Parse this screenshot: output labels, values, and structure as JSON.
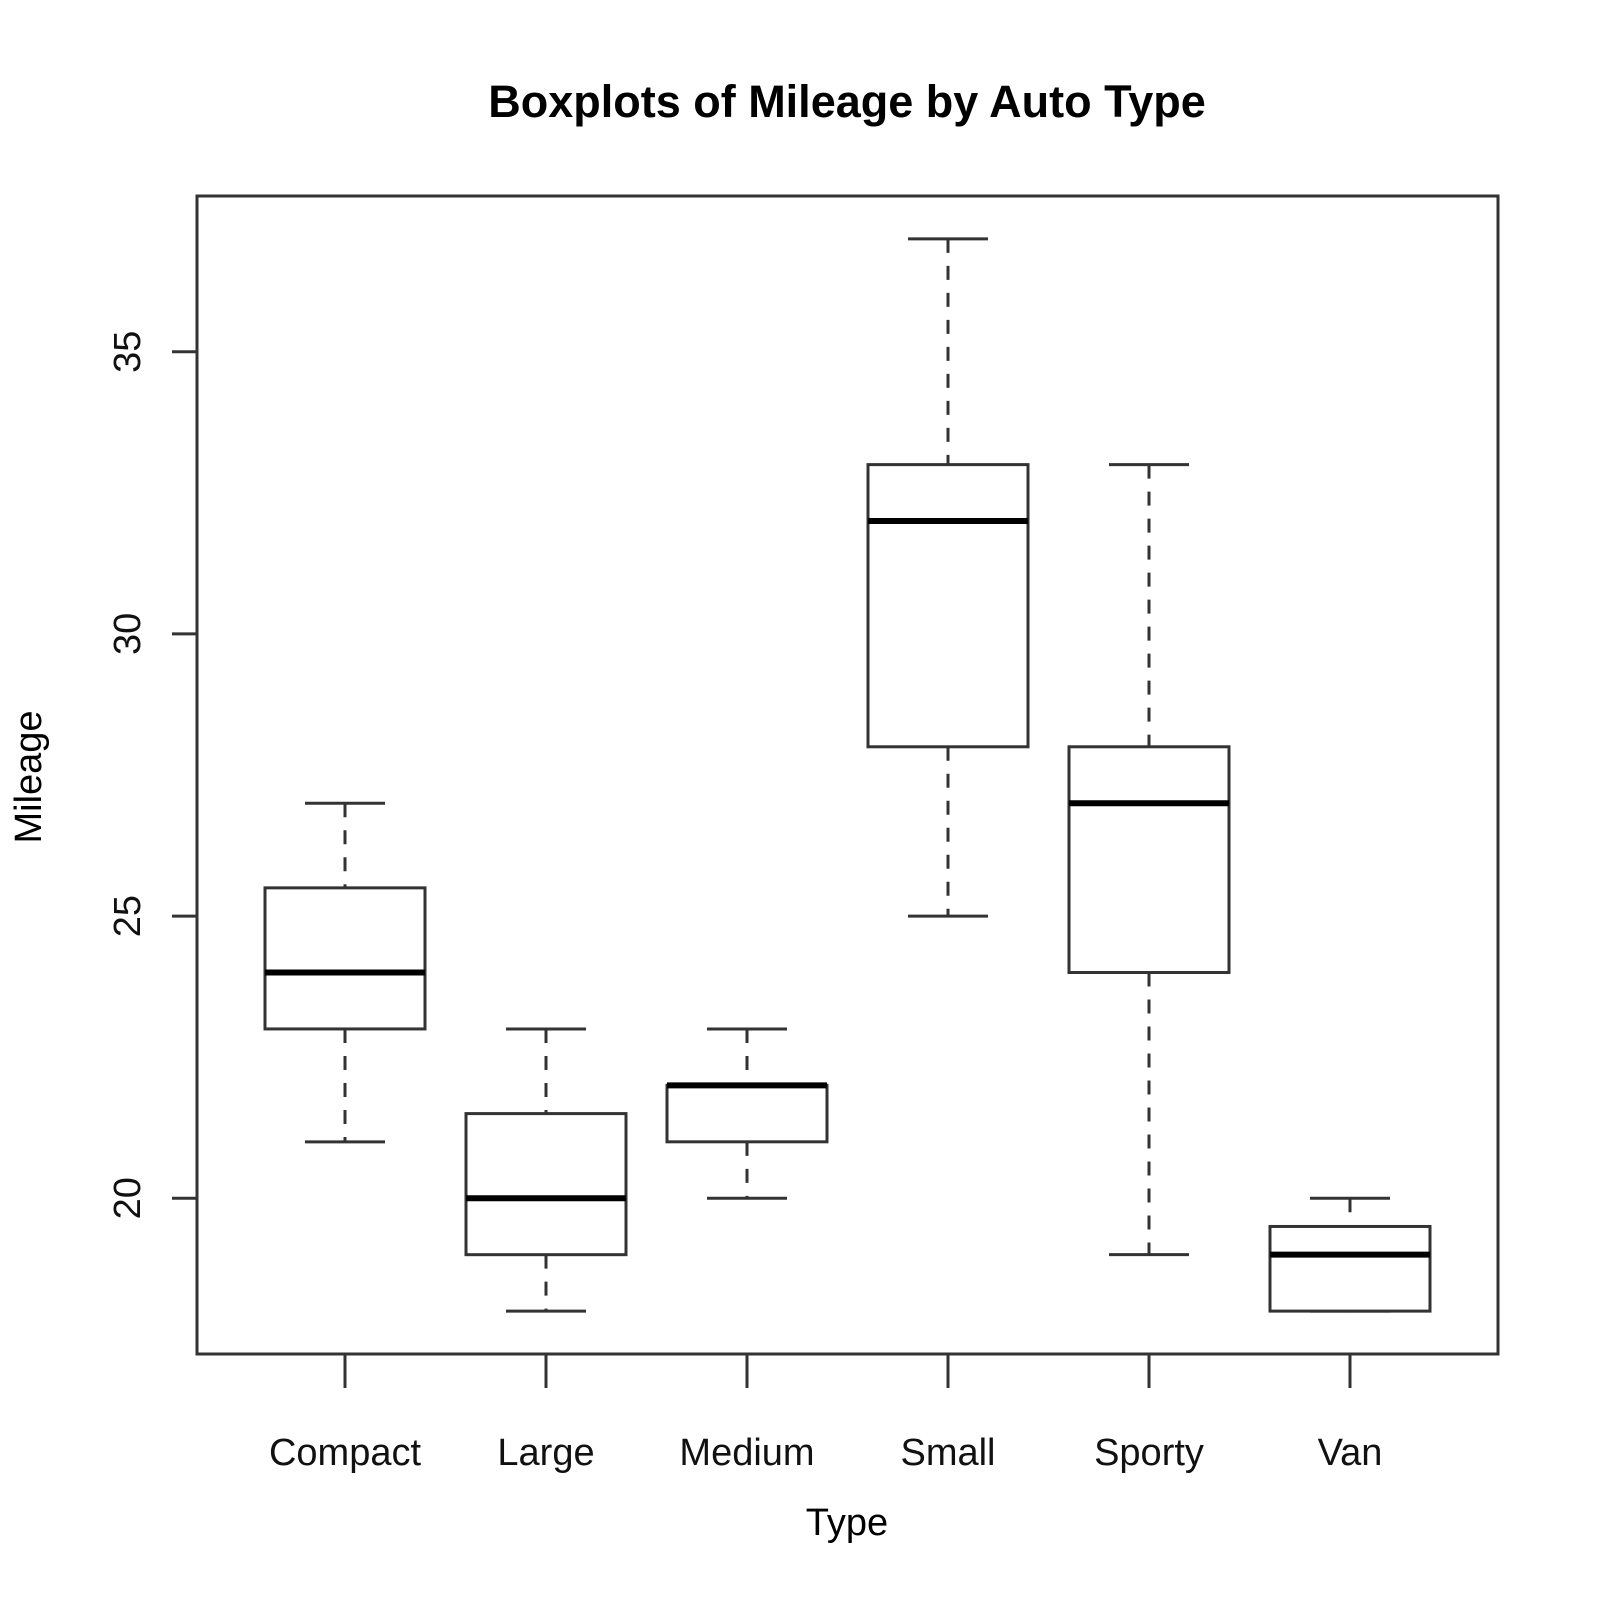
{
  "chart_data": {
    "type": "boxplot",
    "title": "Boxplots of Mileage by Auto Type",
    "xlabel": "Type",
    "ylabel": "Mileage",
    "categories": [
      "Compact",
      "Large",
      "Medium",
      "Small",
      "Sporty",
      "Van"
    ],
    "series": [
      {
        "name": "Compact",
        "min": 21,
        "q1": 23,
        "median": 24,
        "q3": 25.5,
        "max": 27
      },
      {
        "name": "Large",
        "min": 18,
        "q1": 19,
        "median": 20,
        "q3": 21.5,
        "max": 23
      },
      {
        "name": "Medium",
        "min": 20,
        "q1": 21,
        "median": 22,
        "q3": 22,
        "max": 23
      },
      {
        "name": "Small",
        "min": 25,
        "q1": 28,
        "median": 32,
        "q3": 33,
        "max": 37
      },
      {
        "name": "Sporty",
        "min": 19,
        "q1": 24,
        "median": 27,
        "q3": 28,
        "max": 33
      },
      {
        "name": "Van",
        "min": 18,
        "q1": 18,
        "median": 19,
        "q3": 19.5,
        "max": 20
      }
    ],
    "yticks": [
      20,
      25,
      30,
      35
    ],
    "ylim": [
      17.24,
      37.76
    ],
    "grid": false,
    "legend": null
  },
  "colors": {
    "background": "#ffffff",
    "stroke": "#333333",
    "median": "#000000",
    "text": "#000000"
  }
}
